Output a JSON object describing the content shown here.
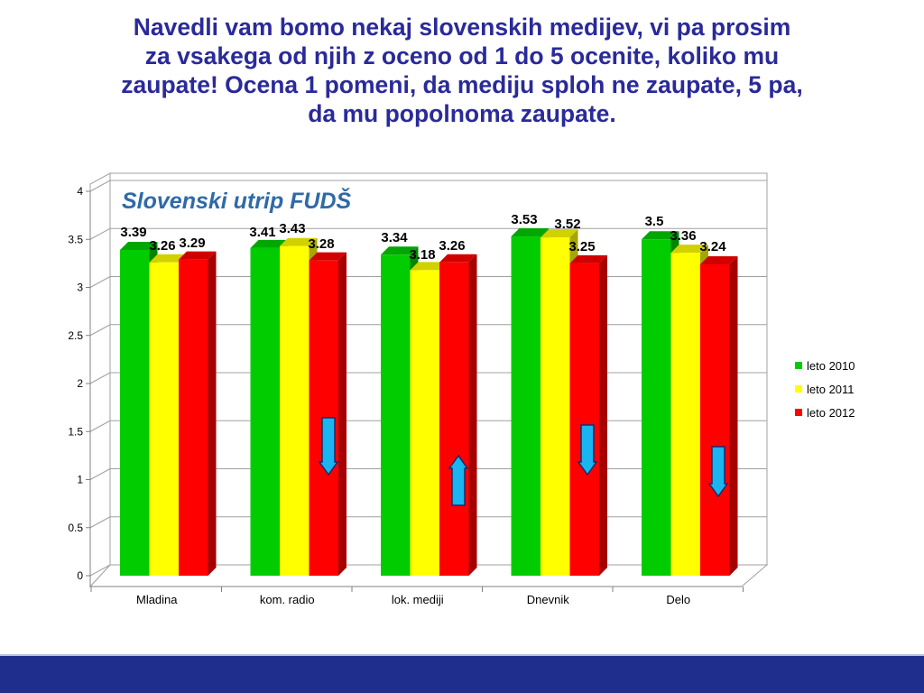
{
  "title_lines": [
    "Navedli vam bomo nekaj slovenskih medijev, vi pa prosim",
    "za vsakega od njih z oceno od 1 do 5 ocenite, koliko mu",
    "zaupate! Ocena 1 pomeni, da mediju sploh ne zaupate, 5 pa,",
    "da mu popolnoma zaupate."
  ],
  "watermark": "Slovenski utrip FUDŠ",
  "chart_data": {
    "type": "bar",
    "categories": [
      "Mladina",
      "kom. radio",
      "lok. mediji",
      "Dnevnik",
      "Delo"
    ],
    "series": [
      {
        "name": "leto 2010",
        "color": "#00cc00",
        "values": [
          3.39,
          3.41,
          3.34,
          3.53,
          3.5
        ]
      },
      {
        "name": "leto 2011",
        "color": "#ffff00",
        "values": [
          3.26,
          3.43,
          3.18,
          3.52,
          3.36
        ]
      },
      {
        "name": "leto 2012",
        "color": "#ff0000",
        "values": [
          3.29,
          3.28,
          3.26,
          3.25,
          3.24
        ]
      }
    ],
    "ylim": [
      0,
      4
    ],
    "yticks": [
      "0",
      "0.5",
      "1",
      "1.5",
      "2",
      "2.5",
      "3",
      "3.5",
      "4"
    ],
    "grid": true,
    "legend_position": "right",
    "trend_arrows": [
      {
        "category": "kom. radio",
        "direction": "down"
      },
      {
        "category": "lok. mediji",
        "direction": "up"
      },
      {
        "category": "Dnevnik",
        "direction": "down"
      },
      {
        "category": "Delo",
        "direction": "down"
      }
    ],
    "arrow_color": "#1ab4f0"
  }
}
